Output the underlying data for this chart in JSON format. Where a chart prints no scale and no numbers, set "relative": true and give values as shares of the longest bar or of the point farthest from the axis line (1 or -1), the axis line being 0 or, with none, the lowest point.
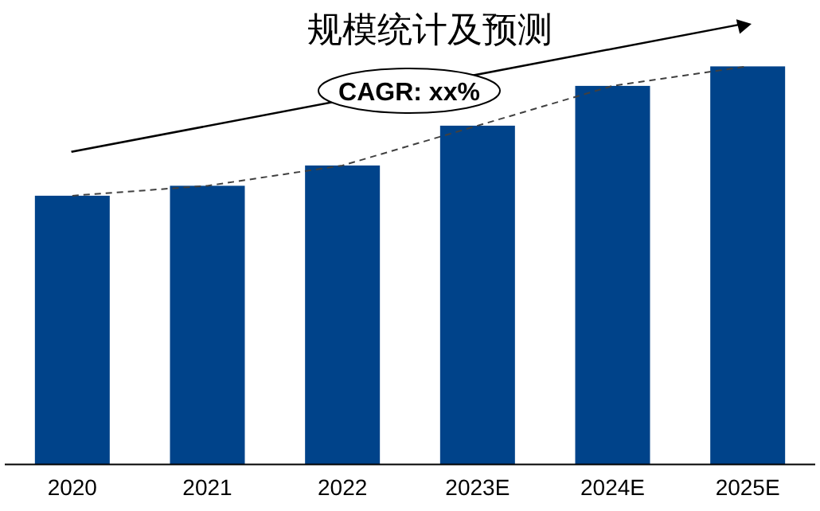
{
  "chart_data": {
    "type": "bar",
    "title": "规模统计及预测",
    "relative": true,
    "categories": [
      "2020",
      "2021",
      "2022",
      "2023E",
      "2024E",
      "2025E"
    ],
    "series": [
      {
        "color": "#00438a",
        "values": [
          0.675,
          0.7,
          0.751,
          0.851,
          0.951,
          1
        ]
      },
      {
        "type": "line",
        "color": "#404040",
        "line_style": "dashed",
        "marker": "none",
        "values": [
          0.675,
          0.7,
          0.751,
          0.851,
          0.951,
          1
        ]
      }
    ],
    "annotations": [
      "CAGR: xx%"
    ]
  }
}
